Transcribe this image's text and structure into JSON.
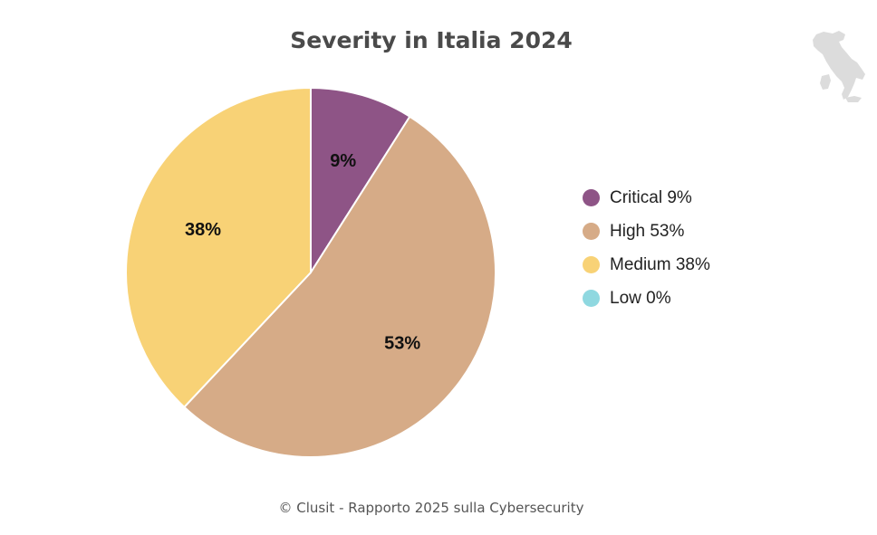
{
  "chart_data": {
    "type": "pie",
    "title": "Severity in Italia 2024",
    "categories": [
      "Critical",
      "High",
      "Medium",
      "Low"
    ],
    "values": [
      9,
      53,
      38,
      0
    ],
    "slice_labels": [
      "9%",
      "53%",
      "38%",
      ""
    ],
    "legend": [
      "Critical 9%",
      "High 53%",
      "Medium 38%",
      "Low 0%"
    ],
    "colors": [
      "#8e5486",
      "#d6ab87",
      "#f8d276",
      "#8fd8e0"
    ],
    "legend_placement": "right"
  },
  "footer": "© Clusit - Rapporto 2025 sulla Cybersecurity",
  "decoration": {
    "map_icon": "italy-map-icon"
  }
}
